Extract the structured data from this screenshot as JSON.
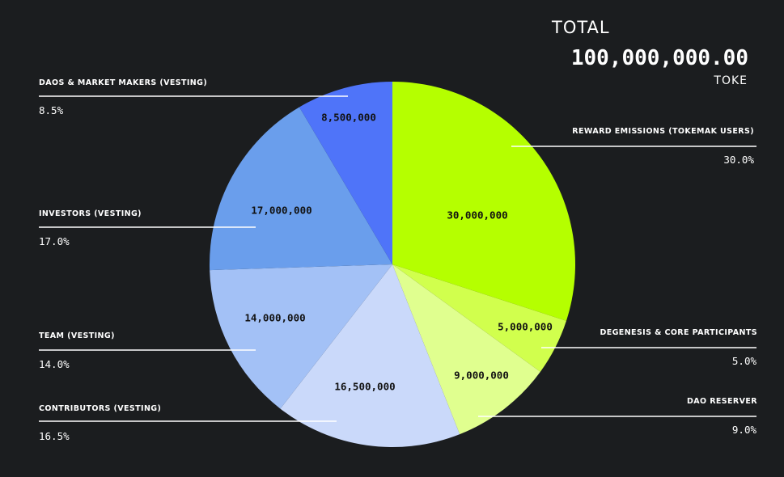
{
  "total": {
    "title": "TOTAL",
    "value": "100,000,000.00",
    "unit": "TOKE"
  },
  "colors": {
    "background": "#1b1d1f",
    "reward": "#b5ff00",
    "degenesis": "#d1ff4d",
    "dao_reserver": "#e0ff8f",
    "contributors": "#cad9fa",
    "team": "#a3c1f6",
    "investors": "#6a9eec",
    "daos_mm": "#4f74f9"
  },
  "labels": {
    "reward": {
      "name": "REWARD EMISSIONS (TOKEMAK USERS)",
      "pct": "30.0%"
    },
    "degenesis": {
      "name": "DEGENESIS & CORE PARTICIPANTS",
      "pct": "5.0%"
    },
    "dao_reserver": {
      "name": "DAO RESERVER",
      "pct": "9.0%"
    },
    "contributors": {
      "name": "CONTRIBUTORS (VESTING)",
      "pct": "16.5%"
    },
    "team": {
      "name": "TEAM (VESTING)",
      "pct": "14.0%"
    },
    "investors": {
      "name": "INVESTORS (VESTING)",
      "pct": "17.0%"
    },
    "daos_mm": {
      "name": "DAOS & MARKET MAKERS (VESTING)",
      "pct": "8.5%"
    }
  },
  "chart_data": {
    "type": "pie",
    "slices": [
      {
        "key": "reward",
        "label": "REWARD EMISSIONS (TOKEMAK USERS)",
        "value": 30000000,
        "value_label": "30,000,000",
        "percent": 30.0,
        "color": "#b5ff00"
      },
      {
        "key": "degenesis",
        "label": "DEGENESIS & CORE PARTICIPANTS",
        "value": 5000000,
        "value_label": "5,000,000",
        "percent": 5.0,
        "color": "#d1ff4d"
      },
      {
        "key": "dao_reserver",
        "label": "DAO RESERVER",
        "value": 9000000,
        "value_label": "9,000,000",
        "percent": 9.0,
        "color": "#e0ff8f"
      },
      {
        "key": "contributors",
        "label": "CONTRIBUTORS (VESTING)",
        "value": 16500000,
        "value_label": "16,500,000",
        "percent": 16.5,
        "color": "#cad9fa"
      },
      {
        "key": "team",
        "label": "TEAM (VESTING)",
        "value": 14000000,
        "value_label": "14,000,000",
        "percent": 14.0,
        "color": "#a3c1f6"
      },
      {
        "key": "investors",
        "label": "INVESTORS (VESTING)",
        "value": 17000000,
        "value_label": "17,000,000",
        "percent": 17.0,
        "color": "#6a9eec"
      },
      {
        "key": "daos_mm",
        "label": "DAOS & MARKET MAKERS (VESTING)",
        "value": 8500000,
        "value_label": "8,500,000",
        "percent": 8.5,
        "color": "#4f74f9"
      }
    ],
    "total": 100000000,
    "start_angle": "12 o'clock",
    "direction": "clockwise"
  }
}
